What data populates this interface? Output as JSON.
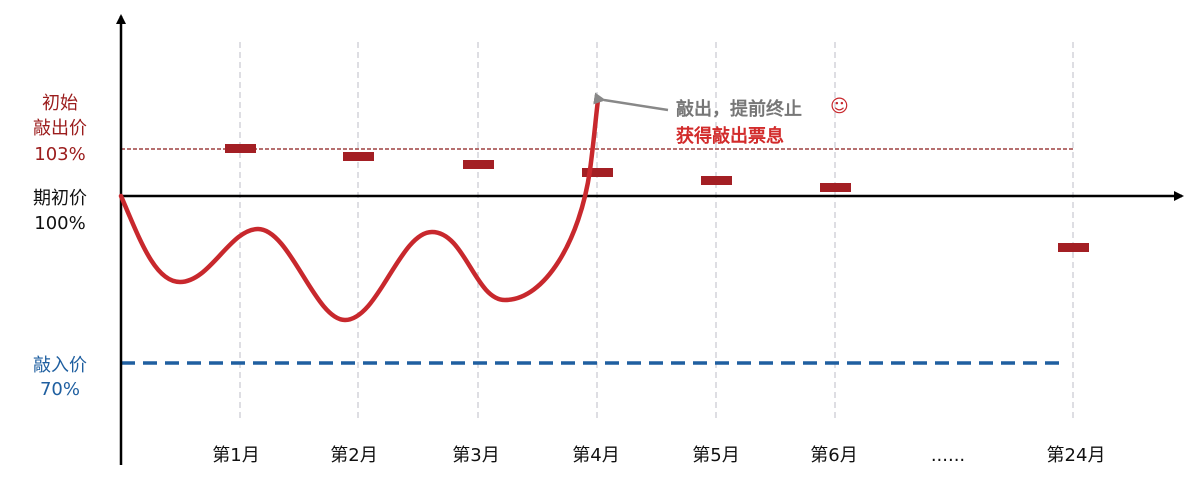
{
  "levels": {
    "knock_out": {
      "lines": [
        "初始",
        "敲出价",
        "103%"
      ]
    },
    "initial": {
      "lines": [
        "期初价",
        "100%"
      ]
    },
    "knock_in": {
      "lines": [
        "敲入价",
        "70%"
      ]
    }
  },
  "months": [
    "第1月",
    "第2月",
    "第3月",
    "第4月",
    "第5月",
    "第6月",
    "......",
    "第24月"
  ],
  "annotation": {
    "line1": "敲出，提前终止",
    "emoji": "☺",
    "line2": "获得敲出票息"
  }
}
